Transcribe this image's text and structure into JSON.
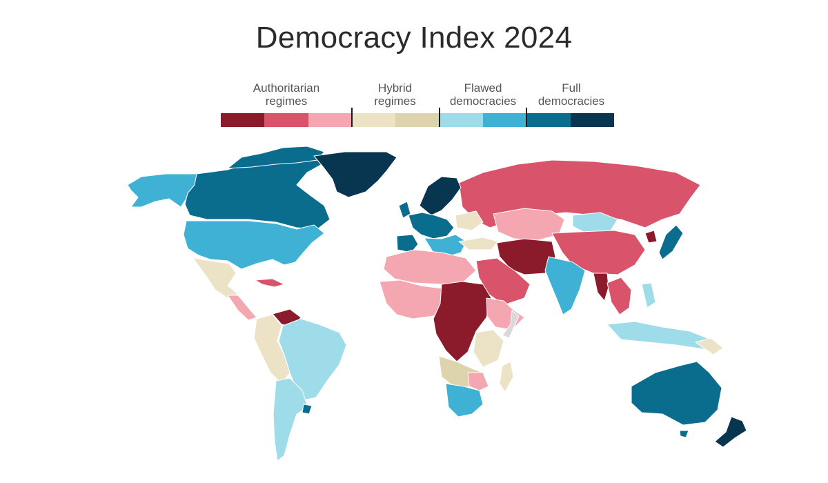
{
  "title": "Democracy Index 2024",
  "legend": {
    "authoritarian": "Authoritarian regimes",
    "hybrid": "Hybrid regimes",
    "flawed": "Flawed democracies",
    "full": "Full democracies",
    "colors": [
      "#8b1a2b",
      "#d9546a",
      "#f4a7b0",
      "#ece3c6",
      "#ddd3ad",
      "#9fdce9",
      "#3fb1d4",
      "#0b6d8e",
      "#08354f"
    ]
  },
  "palette": {
    "authoritarian_dark": "#8b1a2b",
    "authoritarian_mid": "#d9546a",
    "authoritarian_light": "#f4a7b0",
    "hybrid_light": "#ece3c6",
    "hybrid_dark": "#ddd3ad",
    "flawed_light": "#9fdce9",
    "flawed_dark": "#3fb1d4",
    "full_light": "#0b6d8e",
    "full_dark": "#08354f",
    "no_data": "#d9d9d9"
  }
}
